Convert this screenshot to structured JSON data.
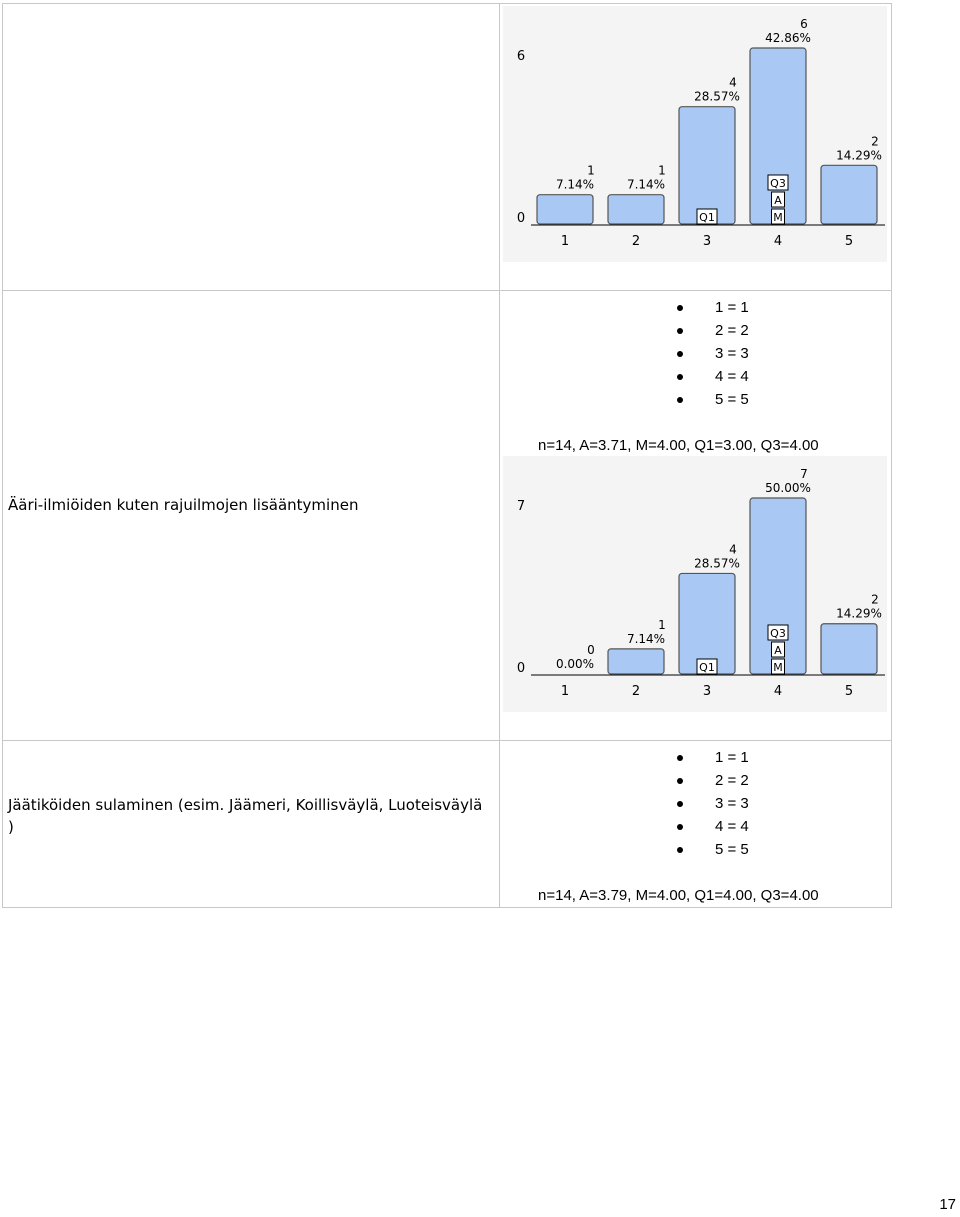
{
  "rows": [
    {
      "label": "",
      "chart_ref": 0
    },
    {
      "label": "Ääri-ilmiöiden kuten rajuilmojen lisääntyminen",
      "legend": [
        "1 = 1",
        "2 = 2",
        "3 = 3",
        "4 = 4",
        "5 = 5"
      ],
      "stats": "n=14, A=3.71, M=4.00, Q1=3.00, Q3=4.00",
      "chart_ref": 1
    },
    {
      "label": "Jäätiköiden sulaminen (esim. Jäämeri, Koillisväylä, Luoteisväylä )",
      "legend": [
        "1 = 1",
        "2 = 2",
        "3 = 3",
        "4 = 4",
        "5 = 5"
      ],
      "stats": "n=14, A=3.79, M=4.00, Q1=4.00, Q3=4.00"
    }
  ],
  "chart_data": [
    {
      "type": "bar",
      "categories": [
        "1",
        "2",
        "3",
        "4",
        "5"
      ],
      "values": [
        1,
        1,
        4,
        6,
        2
      ],
      "percent_labels": [
        "7.14%",
        "7.14%",
        "28.57%",
        "42.86%",
        "14.29%"
      ],
      "ylim": [
        0,
        6
      ],
      "y_tick_labels": [
        "0",
        "6"
      ],
      "markers": {
        "Q1": "3",
        "Q3": "4",
        "A": "4",
        "M": "4"
      },
      "bar_color": "#a9c8f4",
      "background": "#f4f4f4"
    },
    {
      "type": "bar",
      "categories": [
        "1",
        "2",
        "3",
        "4",
        "5"
      ],
      "values": [
        0,
        1,
        4,
        7,
        2
      ],
      "percent_labels": [
        "0.00%",
        "7.14%",
        "28.57%",
        "50.00%",
        "14.29%"
      ],
      "ylim": [
        0,
        7
      ],
      "y_tick_labels": [
        "0",
        "7"
      ],
      "markers": {
        "Q1": "3",
        "Q3": "4",
        "A": "4",
        "M": "4"
      },
      "bar_color": "#a9c8f4",
      "background": "#f4f4f4"
    }
  ],
  "page_number": "17"
}
